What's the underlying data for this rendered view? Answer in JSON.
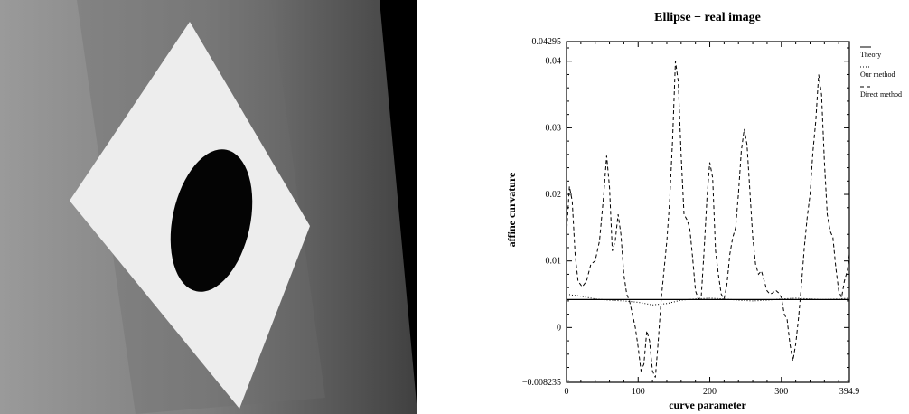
{
  "photo": {
    "subject": "White card with a black ellipse on a grey board",
    "colors": {
      "background": "#000000",
      "board_light": "#8a8a8a",
      "board_dark": "#3a3a3a",
      "card": "#efefef",
      "ellipse": "#050505"
    }
  },
  "chart_data": {
    "type": "line",
    "title": "Ellipse − real image",
    "xlabel": "curve parameter",
    "ylabel": "affine curvature",
    "xlim": [
      0,
      394.9
    ],
    "ylim": [
      -0.008235,
      0.04295
    ],
    "x_ticks": [
      {
        "value": 0,
        "label": "0"
      },
      {
        "value": 100,
        "label": "100"
      },
      {
        "value": 200,
        "label": "200"
      },
      {
        "value": 300,
        "label": "300"
      },
      {
        "value": 394.9,
        "label": "394.9"
      }
    ],
    "y_ticks": [
      {
        "value": -0.008235,
        "label": "−0.008235"
      },
      {
        "value": 0,
        "label": "0"
      },
      {
        "value": 0.01,
        "label": "0.01"
      },
      {
        "value": 0.02,
        "label": "0.02"
      },
      {
        "value": 0.03,
        "label": "0.03"
      },
      {
        "value": 0.04,
        "label": "0.04"
      },
      {
        "value": 0.04295,
        "label": "0.04295"
      }
    ],
    "legend_position": "right",
    "grid": false,
    "series": [
      {
        "name": "Theory",
        "style": "solid",
        "x": [
          0,
          394.9
        ],
        "y": [
          0.0042,
          0.0042
        ]
      },
      {
        "name": "Our method",
        "style": "dotted",
        "x": [
          0,
          20,
          40,
          60,
          80,
          100,
          120,
          140,
          160,
          180,
          200,
          220,
          240,
          260,
          280,
          300,
          320,
          340,
          360,
          380,
          394.9
        ],
        "y": [
          0.005,
          0.0047,
          0.0043,
          0.0041,
          0.004,
          0.0038,
          0.0034,
          0.0036,
          0.0041,
          0.0043,
          0.0044,
          0.0043,
          0.0041,
          0.004,
          0.0041,
          0.0043,
          0.0044,
          0.0043,
          0.0042,
          0.0043,
          0.0044
        ]
      },
      {
        "name": "Direct method",
        "style": "dashed",
        "x": [
          0,
          4,
          8,
          12,
          16,
          22,
          28,
          34,
          40,
          46,
          52,
          56,
          60,
          64,
          68,
          72,
          76,
          80,
          84,
          88,
          92,
          96,
          100,
          104,
          108,
          112,
          116,
          120,
          124,
          128,
          132,
          136,
          140,
          144,
          148,
          152,
          156,
          160,
          164,
          168,
          172,
          176,
          180,
          184,
          188,
          192,
          196,
          200,
          204,
          208,
          212,
          216,
          220,
          224,
          228,
          232,
          236,
          240,
          244,
          248,
          252,
          256,
          260,
          264,
          268,
          272,
          276,
          280,
          284,
          288,
          292,
          296,
          300,
          304,
          308,
          312,
          316,
          320,
          324,
          328,
          332,
          336,
          340,
          344,
          348,
          352,
          356,
          360,
          364,
          368,
          372,
          376,
          380,
          384,
          388,
          392,
          394.9
        ],
        "y": [
          0.014,
          0.0212,
          0.019,
          0.011,
          0.007,
          0.0061,
          0.007,
          0.0095,
          0.01,
          0.013,
          0.02,
          0.0258,
          0.021,
          0.0115,
          0.013,
          0.017,
          0.014,
          0.008,
          0.005,
          0.004,
          0.002,
          0.0,
          -0.003,
          -0.0065,
          -0.0055,
          -0.0005,
          -0.002,
          -0.0065,
          -0.0075,
          -0.002,
          0.004,
          0.0085,
          0.013,
          0.019,
          0.028,
          0.04,
          0.037,
          0.026,
          0.017,
          0.0162,
          0.015,
          0.0105,
          0.0055,
          0.0043,
          0.0045,
          0.0115,
          0.0195,
          0.0248,
          0.0225,
          0.0115,
          0.008,
          0.005,
          0.0043,
          0.0065,
          0.011,
          0.0135,
          0.015,
          0.02,
          0.0265,
          0.0298,
          0.0275,
          0.0205,
          0.0135,
          0.0095,
          0.008,
          0.0085,
          0.007,
          0.0055,
          0.005,
          0.0052,
          0.0056,
          0.0052,
          0.0045,
          0.002,
          0.0012,
          -0.0025,
          -0.005,
          -0.0025,
          0.0015,
          0.0065,
          0.012,
          0.0165,
          0.02,
          0.0265,
          0.031,
          0.038,
          0.035,
          0.025,
          0.017,
          0.0145,
          0.0135,
          0.009,
          0.0055,
          0.0045,
          0.007,
          0.0085,
          0.011
        ]
      }
    ]
  }
}
